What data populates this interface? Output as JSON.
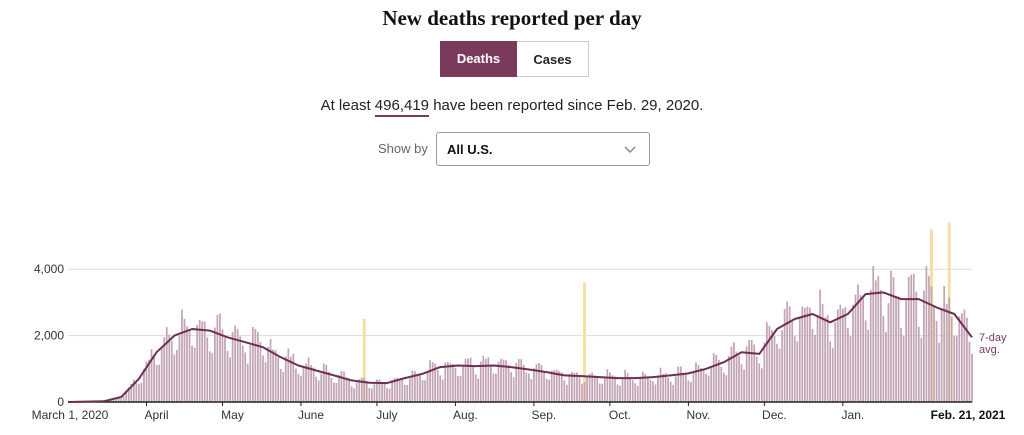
{
  "header": {
    "title": "New deaths reported per day"
  },
  "toggle": {
    "deaths_label": "Deaths",
    "cases_label": "Cases",
    "selected": "Deaths"
  },
  "summary": {
    "prefix": "At least ",
    "total": "496,419",
    "suffix": " have been reported since Feb. 29, 2020."
  },
  "filter": {
    "label": "Show by",
    "value": "All U.S.",
    "icon": "chevron-down-icon"
  },
  "colors": {
    "bars": "#c2a4b5",
    "line": "#6e2f50",
    "highlight": "#f6dfa2",
    "accent": "#7a3a5c"
  },
  "chart_data": {
    "type": "bar",
    "title": "New deaths reported per day",
    "x_range": [
      "2020-03-01",
      "2021-02-21"
    ],
    "ylim": [
      0,
      5500
    ],
    "yticks": [
      0,
      2000,
      4000
    ],
    "ytick_labels": [
      "0",
      "2,000",
      "4,000"
    ],
    "xtick_labels": [
      "March 1, 2020",
      "April",
      "May",
      "June",
      "July",
      "Aug.",
      "Sep.",
      "Oct.",
      "Nov.",
      "Dec.",
      "Jan.",
      "Feb. 21, 2021"
    ],
    "xtick_dates": [
      "2020-03-01",
      "2020-04-01",
      "2020-05-01",
      "2020-06-01",
      "2020-07-01",
      "2020-08-01",
      "2020-09-01",
      "2020-10-01",
      "2020-11-01",
      "2020-12-01",
      "2021-01-01",
      "2021-02-21"
    ],
    "grid": "horizontal",
    "series": [
      {
        "name": "7-day avg.",
        "type": "line",
        "points": [
          [
            "2020-03-01",
            0
          ],
          [
            "2020-03-15",
            20
          ],
          [
            "2020-03-22",
            150
          ],
          [
            "2020-03-29",
            700
          ],
          [
            "2020-04-05",
            1500
          ],
          [
            "2020-04-12",
            2000
          ],
          [
            "2020-04-19",
            2200
          ],
          [
            "2020-04-26",
            2150
          ],
          [
            "2020-05-03",
            1950
          ],
          [
            "2020-05-10",
            1800
          ],
          [
            "2020-05-17",
            1650
          ],
          [
            "2020-05-24",
            1350
          ],
          [
            "2020-05-31",
            1100
          ],
          [
            "2020-06-07",
            950
          ],
          [
            "2020-06-14",
            800
          ],
          [
            "2020-06-21",
            650
          ],
          [
            "2020-06-28",
            580
          ],
          [
            "2020-07-05",
            570
          ],
          [
            "2020-07-12",
            720
          ],
          [
            "2020-07-19",
            850
          ],
          [
            "2020-07-26",
            1050
          ],
          [
            "2020-08-02",
            1100
          ],
          [
            "2020-08-09",
            1080
          ],
          [
            "2020-08-16",
            1100
          ],
          [
            "2020-08-23",
            1050
          ],
          [
            "2020-08-30",
            980
          ],
          [
            "2020-09-06",
            900
          ],
          [
            "2020-09-13",
            800
          ],
          [
            "2020-09-20",
            780
          ],
          [
            "2020-09-27",
            750
          ],
          [
            "2020-10-04",
            720
          ],
          [
            "2020-10-11",
            720
          ],
          [
            "2020-10-18",
            750
          ],
          [
            "2020-10-25",
            800
          ],
          [
            "2020-11-01",
            860
          ],
          [
            "2020-11-08",
            1000
          ],
          [
            "2020-11-15",
            1200
          ],
          [
            "2020-11-22",
            1500
          ],
          [
            "2020-11-29",
            1450
          ],
          [
            "2020-12-06",
            2200
          ],
          [
            "2020-12-13",
            2500
          ],
          [
            "2020-12-20",
            2650
          ],
          [
            "2020-12-27",
            2400
          ],
          [
            "2021-01-03",
            2650
          ],
          [
            "2021-01-10",
            3250
          ],
          [
            "2021-01-17",
            3300
          ],
          [
            "2021-01-24",
            3100
          ],
          [
            "2021-01-31",
            3100
          ],
          [
            "2021-02-07",
            2850
          ],
          [
            "2021-02-14",
            2650
          ],
          [
            "2021-02-21",
            1950
          ]
        ]
      }
    ],
    "highlight_bars": [
      [
        "2020-06-26",
        2500
      ],
      [
        "2020-09-21",
        3600
      ],
      [
        "2021-02-05",
        5200
      ],
      [
        "2021-02-12",
        5400
      ]
    ],
    "avg_label": [
      "7-day",
      "avg."
    ]
  }
}
